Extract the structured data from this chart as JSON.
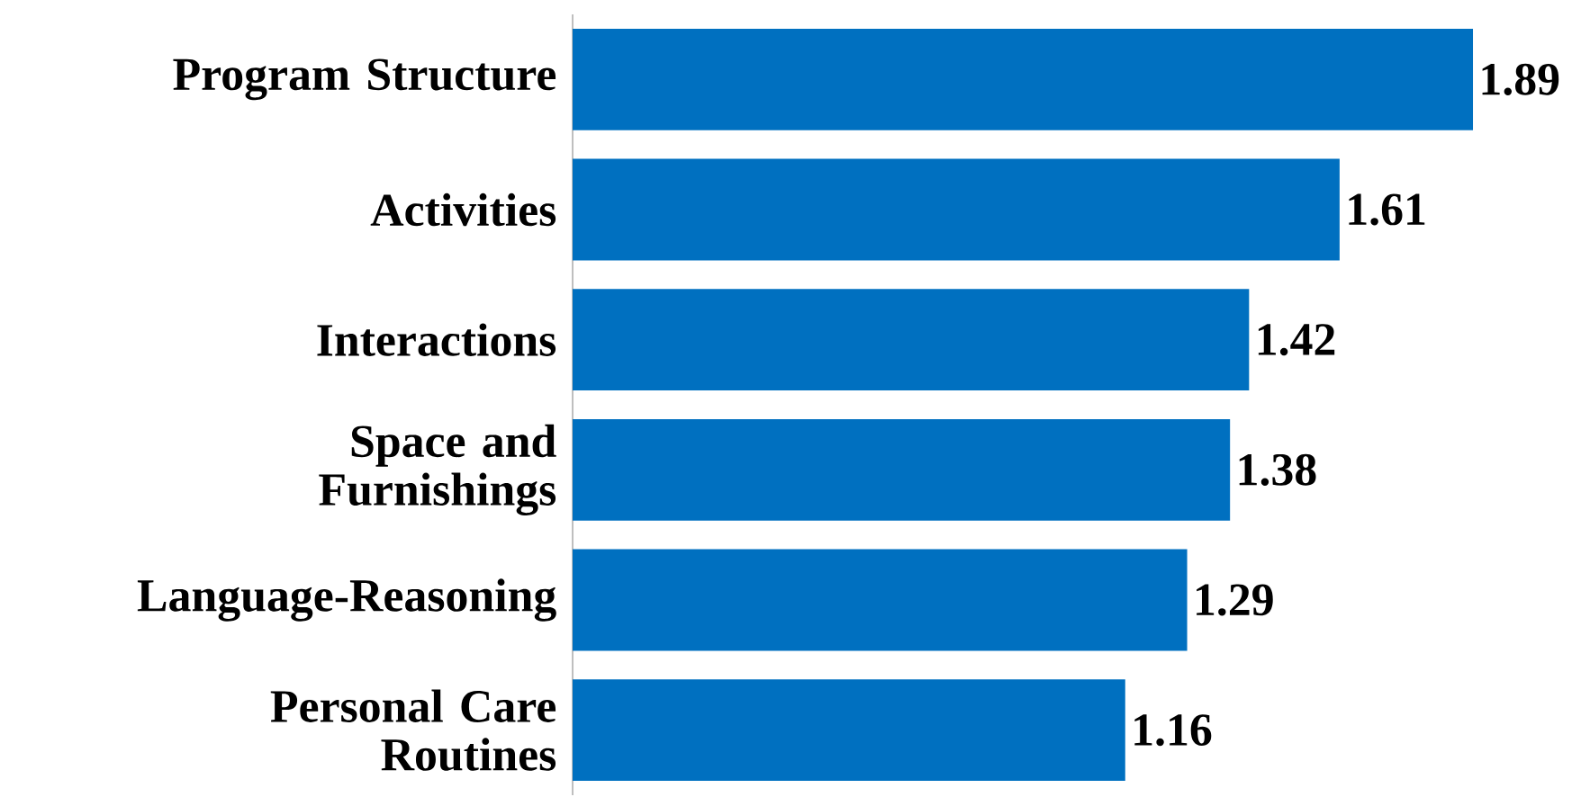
{
  "chart_data": {
    "type": "bar",
    "orientation": "horizontal",
    "categories": [
      "Program Structure",
      "Activities",
      "Interactions",
      "Space and Furnishings",
      "Language-Reasoning",
      "Personal Care Routines"
    ],
    "values": [
      1.89,
      1.61,
      1.42,
      1.38,
      1.29,
      1.16
    ],
    "color": "#0070c0",
    "data_labels": true
  }
}
